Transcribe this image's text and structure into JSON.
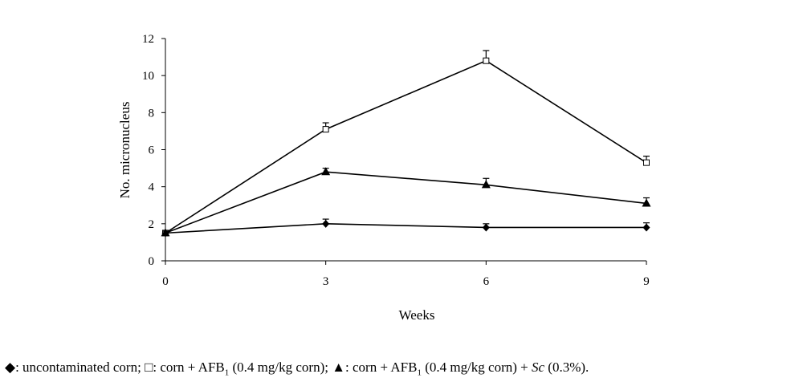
{
  "chart_data": {
    "type": "line",
    "xlabel": "Weeks",
    "ylabel": "No. micronucleus",
    "x": [
      0,
      3,
      6,
      9
    ],
    "xticks": [
      "0",
      "3",
      "6",
      "9"
    ],
    "yticks": [
      "0",
      "2",
      "4",
      "6",
      "8",
      "10",
      "12"
    ],
    "xlim": [
      0,
      9
    ],
    "ylim": [
      0,
      12
    ],
    "grid": false,
    "legend_position": "bottom",
    "series": [
      {
        "marker": "diamond",
        "values": [
          1.5,
          2.0,
          1.8,
          1.8
        ],
        "errors": [
          0.1,
          0.25,
          0.2,
          0.25
        ]
      },
      {
        "marker": "open-square",
        "values": [
          1.5,
          7.1,
          10.8,
          5.3
        ],
        "errors": [
          0.1,
          0.35,
          0.55,
          0.35
        ]
      },
      {
        "marker": "triangle",
        "values": [
          1.5,
          4.8,
          4.1,
          3.1
        ],
        "errors": [
          0.1,
          0.2,
          0.35,
          0.3
        ]
      }
    ],
    "legend": {
      "items": [
        {
          "symbol": "◆",
          "text": ": uncontaminated corn; "
        },
        {
          "symbol": "□",
          "text_pre": ": corn + AFB",
          "sub": "1",
          "text_post": " (0.4 mg/kg corn); "
        },
        {
          "symbol": "▲",
          "text_pre": ": corn + AFB",
          "sub": "1",
          "text_post": " (0.4 mg/kg corn) + ",
          "italic": "Sc",
          "text_end": " (0.3%)."
        }
      ]
    }
  }
}
